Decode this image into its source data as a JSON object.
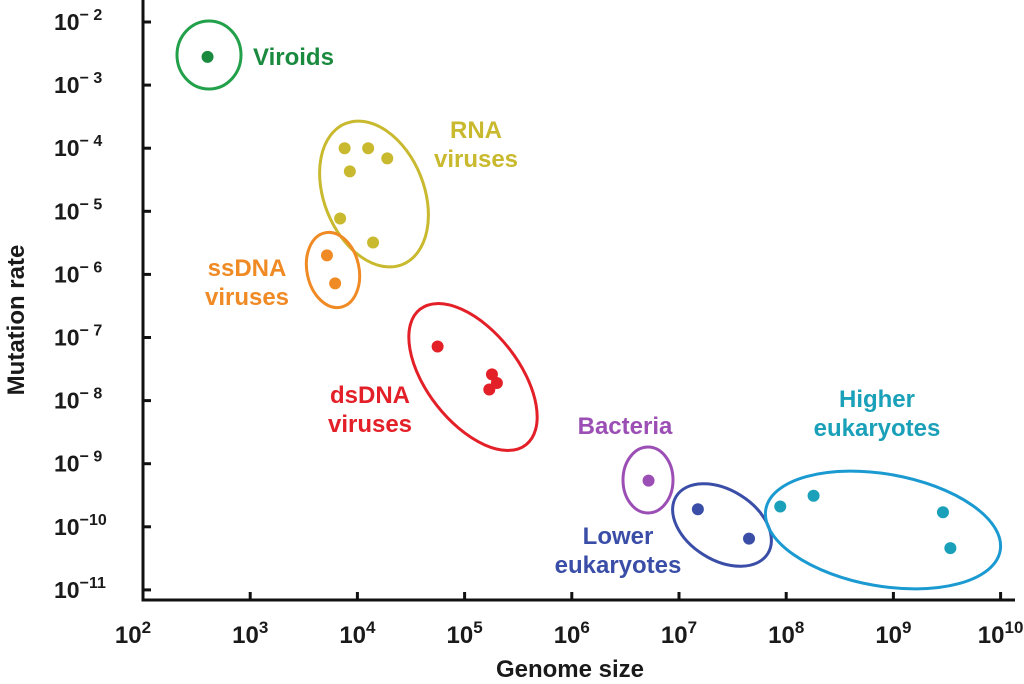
{
  "chart_data": {
    "type": "scatter",
    "title": "",
    "xlabel": "Genome size",
    "ylabel": "Mutation rate",
    "xscale": "log",
    "yscale": "log",
    "xlim": [
      100,
      10000000000
    ],
    "ylim": [
      1e-11,
      0.01
    ],
    "grid": false,
    "x_ticks": [
      {
        "exp": 2,
        "base": "10",
        "sup": "2"
      },
      {
        "exp": 3,
        "base": "10",
        "sup": "3"
      },
      {
        "exp": 4,
        "base": "10",
        "sup": "4"
      },
      {
        "exp": 5,
        "base": "10",
        "sup": "5"
      },
      {
        "exp": 6,
        "base": "10",
        "sup": "6"
      },
      {
        "exp": 7,
        "base": "10",
        "sup": "7"
      },
      {
        "exp": 8,
        "base": "10",
        "sup": "8"
      },
      {
        "exp": 9,
        "base": "10",
        "sup": "9"
      },
      {
        "exp": 10,
        "base": "10",
        "sup": "10"
      }
    ],
    "y_ticks": [
      {
        "exp": -2,
        "base": "10",
        "sup": "− 2"
      },
      {
        "exp": -3,
        "base": "10",
        "sup": "− 3"
      },
      {
        "exp": -4,
        "base": "10",
        "sup": "− 4"
      },
      {
        "exp": -5,
        "base": "10",
        "sup": "− 5"
      },
      {
        "exp": -6,
        "base": "10",
        "sup": "− 6"
      },
      {
        "exp": -7,
        "base": "10",
        "sup": "− 7"
      },
      {
        "exp": -8,
        "base": "10",
        "sup": "− 8"
      },
      {
        "exp": -9,
        "base": "10",
        "sup": "− 9"
      },
      {
        "exp": -10,
        "base": "10",
        "sup": "−10"
      },
      {
        "exp": -11,
        "base": "10",
        "sup": "−11"
      }
    ],
    "series": [
      {
        "name": "Viroids",
        "label_lines": [
          "Viroids"
        ],
        "color": "#1a8a3e",
        "ellipse_color": "#22a04a",
        "points": [
          [
            400,
            0.0028
          ]
        ]
      },
      {
        "name": "RNA viruses",
        "label_lines": [
          "RNA",
          "viruses"
        ],
        "color": "#c9b92e",
        "ellipse_color": "#c9b92e",
        "points": [
          [
            7600,
            0.0001
          ],
          [
            12600,
            0.0001
          ],
          [
            19000,
            6.9e-05
          ],
          [
            8500,
            4.3e-05
          ],
          [
            6900,
            7.7e-06
          ],
          [
            14000,
            3.2e-06
          ]
        ]
      },
      {
        "name": "ssDNA viruses",
        "label_lines": [
          "ssDNA",
          "viruses"
        ],
        "color": "#f08a24",
        "ellipse_color": "#f08a24",
        "points": [
          [
            5200,
            2e-06
          ],
          [
            6200,
            7.2e-07
          ]
        ]
      },
      {
        "name": "dsDNA viruses",
        "label_lines": [
          "dsDNA",
          "viruses"
        ],
        "color": "#e32028",
        "ellipse_color": "#e32028",
        "points": [
          [
            56000,
            7.2e-08
          ],
          [
            180000,
            2.6e-08
          ],
          [
            200000,
            1.9e-08
          ],
          [
            170000,
            1.5e-08
          ]
        ]
      },
      {
        "name": "Bacteria",
        "label_lines": [
          "Bacteria"
        ],
        "color": "#9b4fb5",
        "ellipse_color": "#9b4fb5",
        "points": [
          [
            5200000,
            5.4e-10
          ]
        ]
      },
      {
        "name": "Lower eukaryotes",
        "label_lines": [
          "Lower",
          "eukaryotes"
        ],
        "color": "#3a4ea8",
        "ellipse_color": "#3a4ea8",
        "points": [
          [
            15000000,
            1.9e-10
          ],
          [
            45000000,
            6.5e-11
          ]
        ]
      },
      {
        "name": "Higher eukaryotes",
        "label_lines": [
          "Higher",
          "eukaryotes"
        ],
        "color": "#1aa0b8",
        "ellipse_color": "#1a9ad0",
        "points": [
          [
            88000000,
            2.1e-10
          ],
          [
            180000000,
            3.1e-10
          ],
          [
            2900000000,
            1.7e-10
          ],
          [
            3400000000,
            4.6e-11
          ]
        ]
      }
    ]
  }
}
